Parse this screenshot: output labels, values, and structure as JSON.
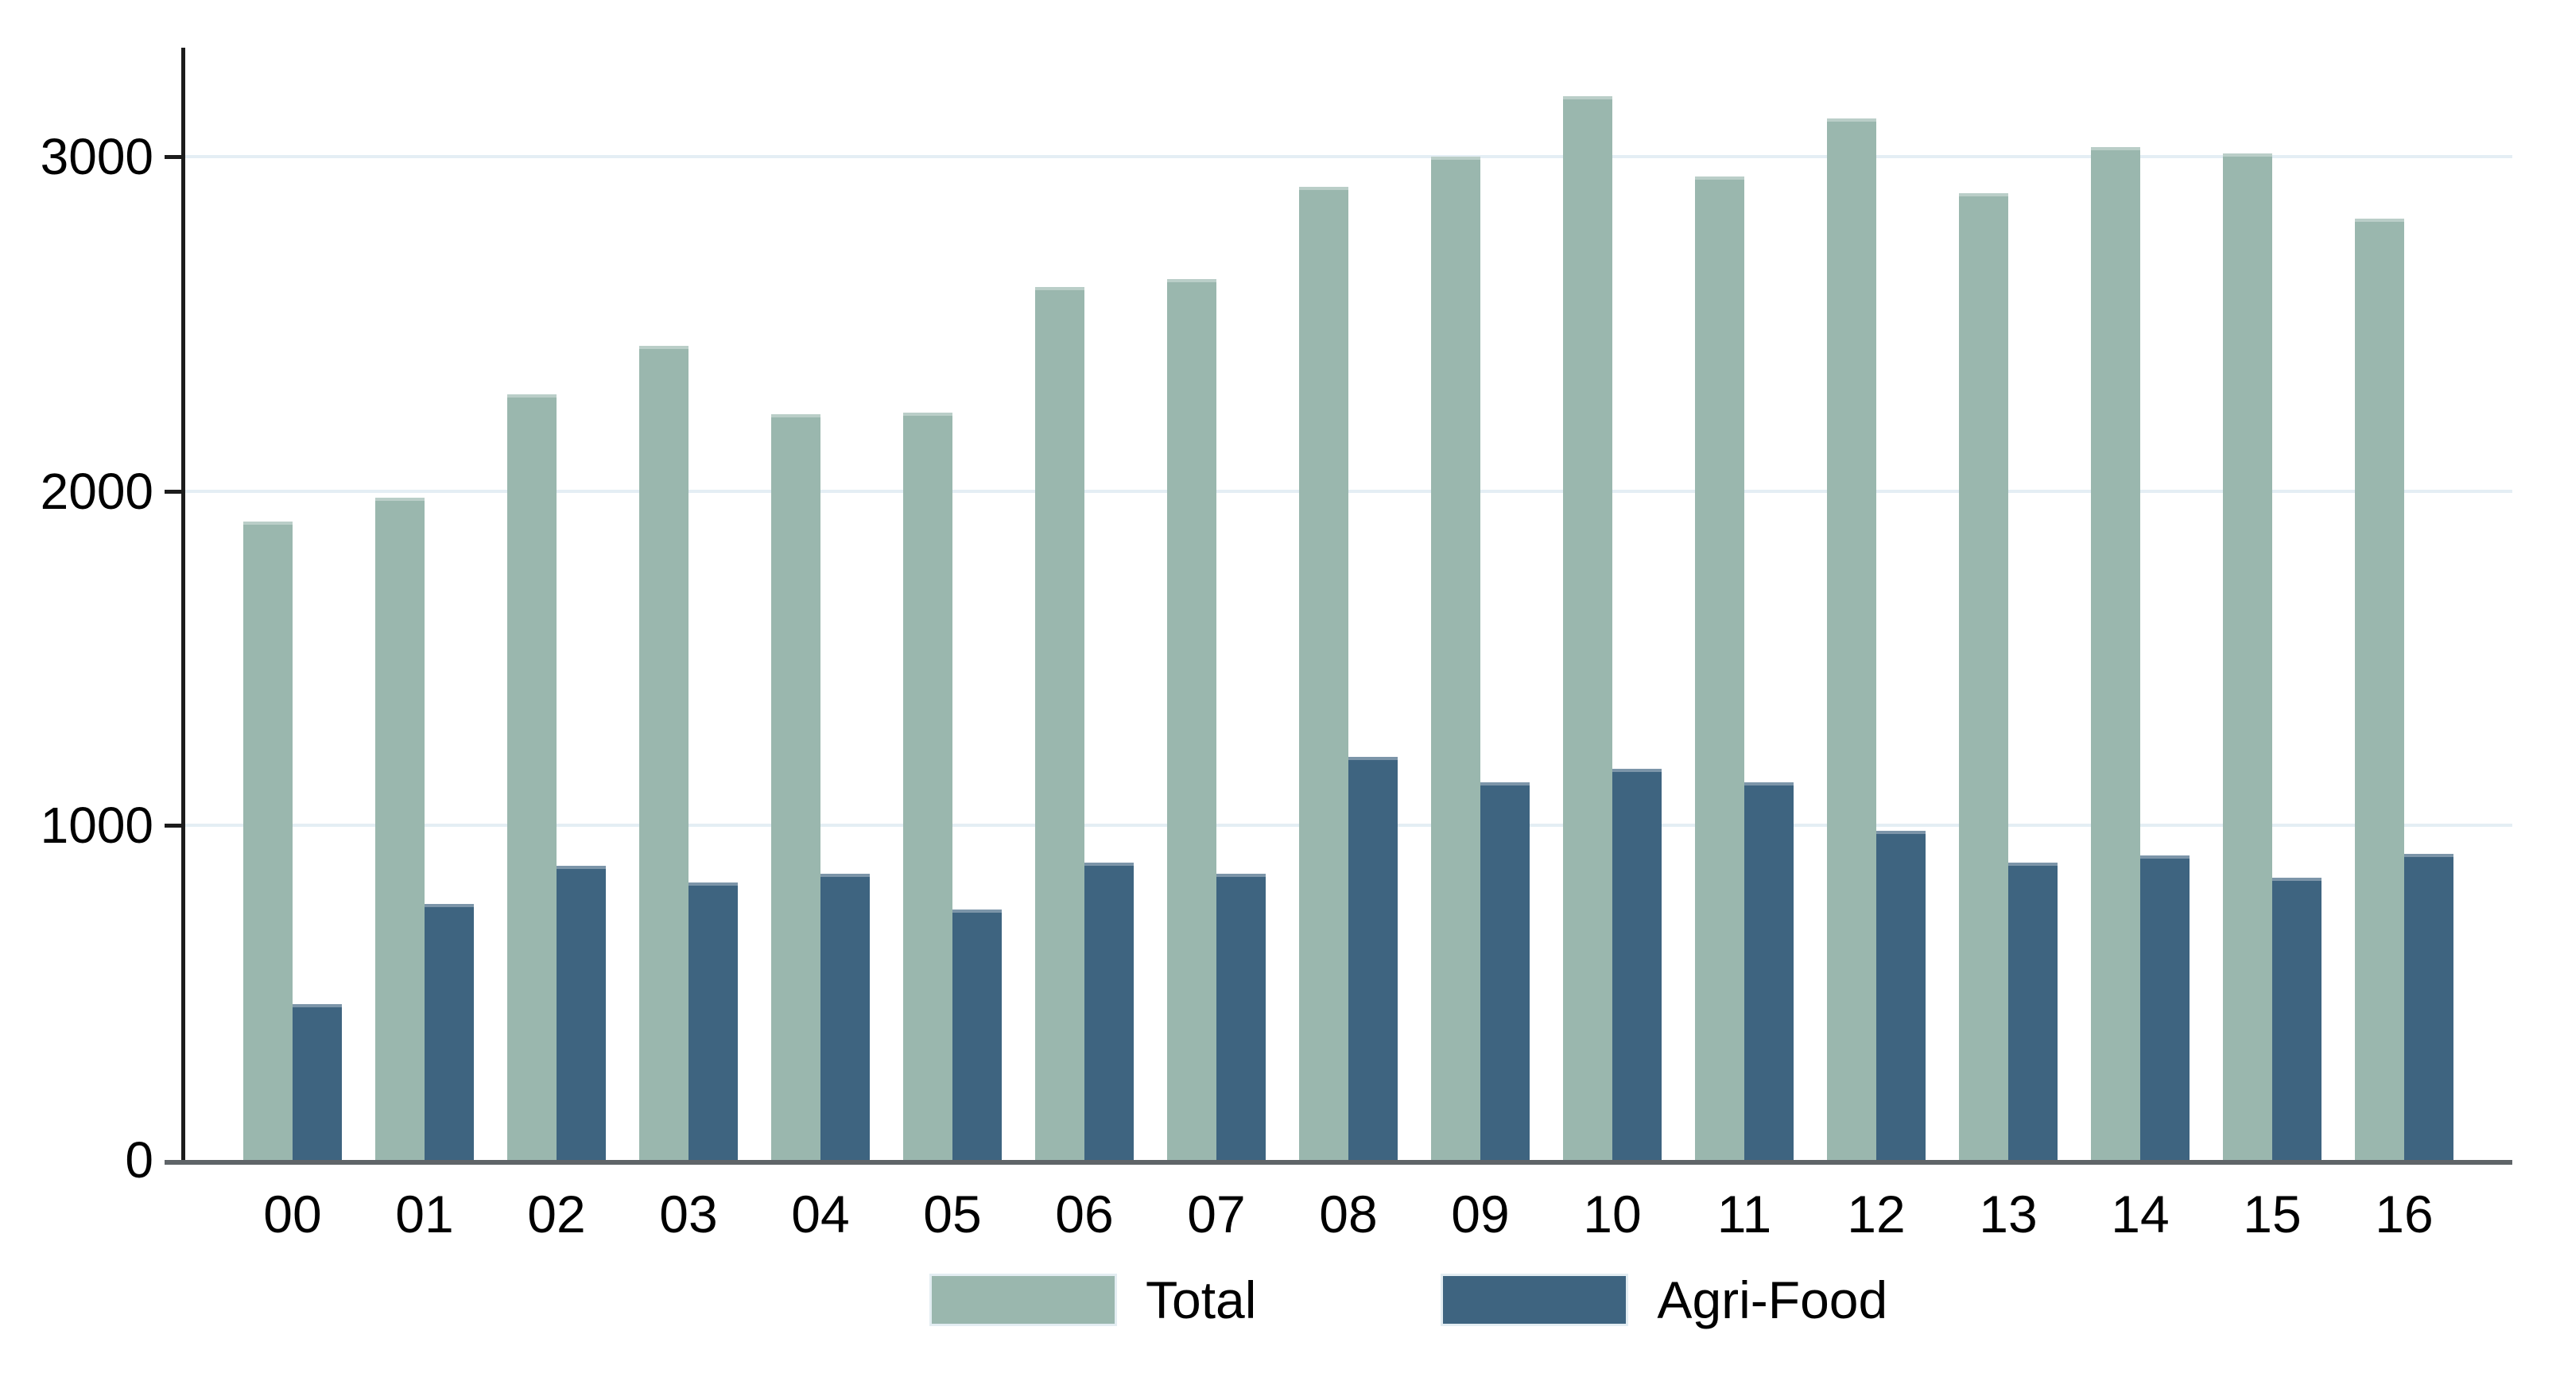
{
  "chart_data": {
    "type": "bar",
    "title": "",
    "xlabel": "",
    "ylabel": "",
    "categories": [
      "00",
      "01",
      "02",
      "03",
      "04",
      "05",
      "06",
      "07",
      "08",
      "09",
      "10",
      "11",
      "12",
      "13",
      "14",
      "15",
      "16"
    ],
    "series": [
      {
        "name": "Total",
        "color": "#9ab7ae",
        "values": [
          1910,
          1980,
          2290,
          2435,
          2230,
          2235,
          2610,
          2635,
          2910,
          3000,
          3180,
          2940,
          3115,
          2890,
          3030,
          3010,
          2815
        ]
      },
      {
        "name": "Agri-Food",
        "color": "#3e6480",
        "values": [
          465,
          765,
          880,
          830,
          855,
          750,
          890,
          855,
          1205,
          1130,
          1170,
          1130,
          985,
          890,
          910,
          845,
          915
        ]
      }
    ],
    "y_ticks": [
      0,
      1000,
      2000,
      3000
    ],
    "ylim": [
      0,
      3326
    ],
    "grid": true,
    "gridline_color": "#e4eef4",
    "baseline_color": "#5f6468",
    "axis_color": "#1c1c1c",
    "legend_position": "bottom"
  }
}
